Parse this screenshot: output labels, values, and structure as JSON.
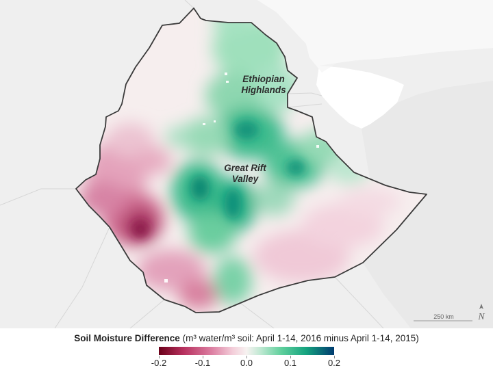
{
  "map": {
    "labels": {
      "highlands": [
        "Ethiopian",
        "Highlands"
      ],
      "rift": [
        "Great Rift",
        "Valley"
      ]
    },
    "scale_label": "250 km",
    "north_label": "N"
  },
  "legend": {
    "title_bold": "Soil Moisture Difference",
    "title_rest": " (m³ water/m³ soil: April 1-14, 2016 minus April 1-14, 2015)",
    "ticks": [
      "-0.2",
      "-0.1",
      "0.0",
      "0.1",
      "0.2"
    ]
  },
  "colors": {
    "dry": "#6b0019",
    "neutral": "#f7f2f1",
    "wet": "#003b70",
    "background_land": "#efefef",
    "water": "#ffffff",
    "border": "#3a3a3a"
  }
}
